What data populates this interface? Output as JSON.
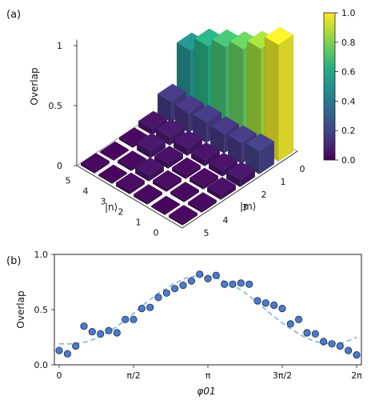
{
  "panels": {
    "a": {
      "label": "(a)"
    },
    "b": {
      "label": "(b)"
    }
  },
  "colormap": {
    "name": "viridis",
    "ticks": [
      "0.0",
      "0.2",
      "0.4",
      "0.6",
      "0.8",
      "1.0"
    ],
    "stops": [
      "#440154",
      "#472d7b",
      "#3b528b",
      "#2c728e",
      "#21918c",
      "#28ae80",
      "#5ec962",
      "#addc30",
      "#fde725"
    ]
  },
  "chart_data": [
    {
      "type": "bar3d",
      "title": "",
      "zlabel": "Overlap",
      "xlabel": "|m⟩",
      "ylabel": "|n⟩",
      "x_ticks": [
        "0",
        "1",
        "2",
        "3",
        "4",
        "5"
      ],
      "y_ticks": [
        "0",
        "1",
        "2",
        "3",
        "4",
        "5"
      ],
      "z_ticks": [
        "0",
        "0.5",
        "1"
      ],
      "zlim": [
        0,
        1
      ],
      "values": [
        [
          0.97,
          0.19,
          0.06,
          0.04,
          0.02,
          0.02
        ],
        [
          0.85,
          0.17,
          0.05,
          0.03,
          0.02,
          0.01
        ],
        [
          0.76,
          0.16,
          0.05,
          0.03,
          0.03,
          0.02
        ],
        [
          0.69,
          0.17,
          0.06,
          0.04,
          0.05,
          0.03
        ],
        [
          0.61,
          0.16,
          0.07,
          0.06,
          0.02,
          0.01
        ],
        [
          0.49,
          0.17,
          0.05,
          0.02,
          0.01,
          0.02
        ]
      ]
    },
    {
      "type": "scatter",
      "title": "",
      "xlabel": "φ01",
      "ylabel": "Overlap",
      "x_ticks": [
        "0",
        "π/2",
        "π",
        "3π/2",
        "2π"
      ],
      "y_ticks": [
        "0.0",
        "0.5",
        "1.0"
      ],
      "xlim": [
        0,
        6.2832
      ],
      "ylim": [
        0,
        1.0
      ],
      "series": [
        {
          "marker": "circle",
          "color": "#4a7cc9",
          "x": [
            0.0,
            0.175,
            0.349,
            0.524,
            0.698,
            0.873,
            1.047,
            1.222,
            1.396,
            1.571,
            1.745,
            1.92,
            2.094,
            2.269,
            2.443,
            2.618,
            2.793,
            2.967,
            3.142,
            3.316,
            3.491,
            3.665,
            3.84,
            4.014,
            4.189,
            4.363,
            4.538,
            4.712,
            4.887,
            5.061,
            5.236,
            5.411,
            5.585,
            5.76,
            5.934,
            6.109,
            6.283
          ],
          "y": [
            0.13,
            0.1,
            0.17,
            0.35,
            0.3,
            0.28,
            0.31,
            0.29,
            0.41,
            0.41,
            0.51,
            0.52,
            0.61,
            0.65,
            0.69,
            0.72,
            0.76,
            0.82,
            0.78,
            0.81,
            0.73,
            0.73,
            0.74,
            0.73,
            0.58,
            0.56,
            0.54,
            0.51,
            0.37,
            0.41,
            0.29,
            0.28,
            0.21,
            0.19,
            0.17,
            0.13,
            0.09
          ]
        },
        {
          "line": "dashed",
          "color": "#7fb2d8",
          "x": [
            0.0,
            0.3,
            0.6,
            0.9,
            1.2,
            1.5,
            1.8,
            2.1,
            2.4,
            2.7,
            3.0,
            3.3,
            3.6,
            3.9,
            4.2,
            4.5,
            4.8,
            5.1,
            5.4,
            5.7,
            6.0,
            6.283
          ],
          "y": [
            0.19,
            0.19,
            0.21,
            0.26,
            0.34,
            0.44,
            0.55,
            0.65,
            0.73,
            0.79,
            0.81,
            0.79,
            0.74,
            0.66,
            0.56,
            0.45,
            0.35,
            0.27,
            0.21,
            0.19,
            0.2,
            0.25
          ]
        }
      ]
    }
  ]
}
